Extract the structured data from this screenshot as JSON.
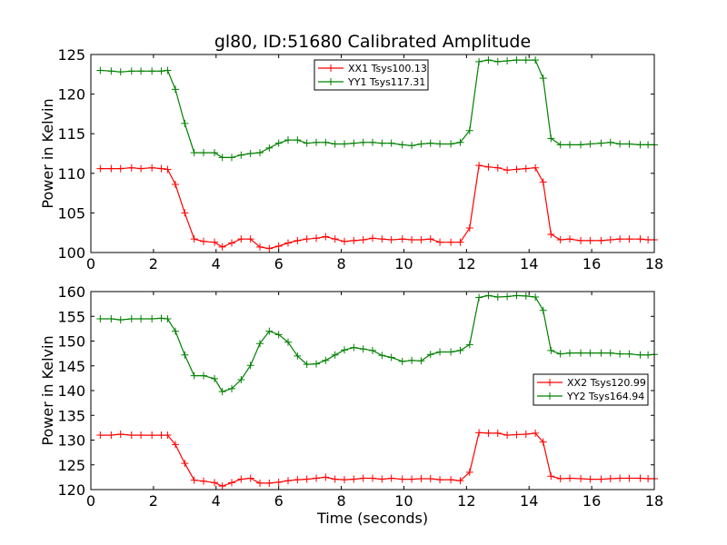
{
  "figure": {
    "title": "gl80, ID:51680 Calibrated Amplitude",
    "xlabel": "Time (seconds)"
  },
  "colors": {
    "red": "#ff0000",
    "green": "#008000"
  },
  "chart_data": [
    {
      "type": "line",
      "ylabel": "Power in Kelvin",
      "xlim": [
        0,
        18
      ],
      "ylim": [
        100,
        125
      ],
      "xticks": [
        "0",
        "2",
        "4",
        "6",
        "8",
        "10",
        "12",
        "14",
        "16",
        "18"
      ],
      "yticks": [
        "100",
        "105",
        "110",
        "115",
        "120",
        "125"
      ],
      "legend_position": "top-center",
      "x": [
        0.3,
        0.65,
        0.95,
        1.3,
        1.6,
        1.95,
        2.25,
        2.45,
        2.7,
        3.0,
        3.3,
        3.6,
        3.95,
        4.2,
        4.5,
        4.8,
        5.1,
        5.4,
        5.7,
        6.0,
        6.3,
        6.6,
        6.9,
        7.2,
        7.5,
        7.8,
        8.1,
        8.4,
        8.7,
        9.0,
        9.3,
        9.6,
        9.95,
        10.25,
        10.55,
        10.85,
        11.15,
        11.5,
        11.8,
        12.1,
        12.4,
        12.7,
        13.0,
        13.3,
        13.6,
        13.9,
        14.2,
        14.45,
        14.7,
        15.0,
        15.3,
        15.65,
        15.95,
        16.3,
        16.6,
        16.9,
        17.2,
        17.55,
        17.8,
        18.0
      ],
      "series": [
        {
          "name": "XX1 Tsys100.13",
          "color": "#ff0000",
          "values": [
            110.6,
            110.6,
            110.6,
            110.7,
            110.6,
            110.7,
            110.6,
            110.5,
            108.6,
            105.0,
            101.7,
            101.4,
            101.3,
            100.7,
            101.2,
            101.7,
            101.7,
            100.7,
            100.5,
            100.8,
            101.2,
            101.5,
            101.7,
            101.8,
            102.0,
            101.7,
            101.4,
            101.5,
            101.6,
            101.8,
            101.7,
            101.6,
            101.7,
            101.6,
            101.6,
            101.7,
            101.3,
            101.3,
            101.3,
            103.1,
            111.0,
            110.8,
            110.7,
            110.4,
            110.5,
            110.6,
            110.7,
            108.9,
            102.3,
            101.6,
            101.7,
            101.5,
            101.5,
            101.5,
            101.6,
            101.7,
            101.7,
            101.7,
            101.6,
            101.6
          ]
        },
        {
          "name": "YY1 Tsys117.31",
          "color": "#008000",
          "values": [
            123.0,
            122.9,
            122.8,
            122.9,
            122.9,
            122.9,
            122.9,
            123.0,
            120.6,
            116.3,
            112.6,
            112.6,
            112.6,
            112.0,
            112.0,
            112.3,
            112.5,
            112.6,
            113.2,
            113.8,
            114.2,
            114.2,
            113.8,
            113.9,
            113.9,
            113.7,
            113.7,
            113.8,
            113.9,
            113.9,
            113.8,
            113.8,
            113.6,
            113.5,
            113.7,
            113.8,
            113.7,
            113.7,
            113.9,
            115.4,
            124.1,
            124.3,
            124.1,
            124.2,
            124.3,
            124.3,
            124.3,
            122.0,
            114.4,
            113.6,
            113.6,
            113.6,
            113.7,
            113.8,
            113.9,
            113.7,
            113.7,
            113.6,
            113.6,
            113.6
          ]
        }
      ]
    },
    {
      "type": "line",
      "ylabel": "Power in Kelvin",
      "xlabel": "Time (seconds)",
      "xlim": [
        0,
        18
      ],
      "ylim": [
        120,
        160
      ],
      "xticks": [
        "0",
        "2",
        "4",
        "6",
        "8",
        "10",
        "12",
        "14",
        "16",
        "18"
      ],
      "yticks": [
        "120",
        "125",
        "130",
        "135",
        "140",
        "145",
        "150",
        "155",
        "160"
      ],
      "legend_position": "right-center",
      "x": [
        0.3,
        0.65,
        0.95,
        1.3,
        1.6,
        1.95,
        2.25,
        2.45,
        2.7,
        3.0,
        3.3,
        3.6,
        3.95,
        4.2,
        4.5,
        4.8,
        5.1,
        5.4,
        5.7,
        6.0,
        6.3,
        6.6,
        6.9,
        7.2,
        7.5,
        7.8,
        8.1,
        8.4,
        8.7,
        9.0,
        9.3,
        9.6,
        9.95,
        10.25,
        10.55,
        10.85,
        11.15,
        11.5,
        11.8,
        12.1,
        12.4,
        12.7,
        13.0,
        13.3,
        13.6,
        13.9,
        14.2,
        14.45,
        14.7,
        15.0,
        15.3,
        15.65,
        15.95,
        16.3,
        16.6,
        16.9,
        17.2,
        17.55,
        17.8,
        18.0
      ],
      "series": [
        {
          "name": "XX2 Tsys120.99",
          "color": "#ff0000",
          "values": [
            131.0,
            131.0,
            131.2,
            131.0,
            131.0,
            131.0,
            131.0,
            131.0,
            129.1,
            125.3,
            121.9,
            121.7,
            121.4,
            120.7,
            121.4,
            122.1,
            122.3,
            121.3,
            121.3,
            121.5,
            121.8,
            122.0,
            122.1,
            122.3,
            122.5,
            122.1,
            122.0,
            122.1,
            122.3,
            122.3,
            122.1,
            122.3,
            122.1,
            122.1,
            122.2,
            122.2,
            122.0,
            122.0,
            121.8,
            123.5,
            131.5,
            131.4,
            131.4,
            131.0,
            131.1,
            131.2,
            131.4,
            129.6,
            122.7,
            122.2,
            122.3,
            122.2,
            122.1,
            122.1,
            122.2,
            122.3,
            122.3,
            122.3,
            122.2,
            122.2
          ]
        },
        {
          "name": "YY2 Tsys164.94",
          "color": "#008000",
          "values": [
            154.5,
            154.5,
            154.3,
            154.5,
            154.5,
            154.5,
            154.6,
            154.5,
            152.0,
            147.2,
            143.0,
            143.0,
            142.4,
            139.8,
            140.4,
            142.2,
            145.1,
            149.5,
            152.0,
            151.3,
            149.8,
            147.0,
            145.3,
            145.4,
            146.1,
            147.2,
            148.2,
            148.7,
            148.4,
            148.1,
            147.1,
            146.7,
            145.9,
            146.1,
            146.0,
            147.3,
            147.8,
            147.8,
            148.1,
            149.3,
            158.8,
            159.2,
            158.9,
            159.0,
            159.2,
            159.1,
            158.9,
            156.2,
            148.1,
            147.4,
            147.6,
            147.6,
            147.6,
            147.6,
            147.6,
            147.4,
            147.4,
            147.2,
            147.2,
            147.3
          ]
        }
      ]
    }
  ]
}
